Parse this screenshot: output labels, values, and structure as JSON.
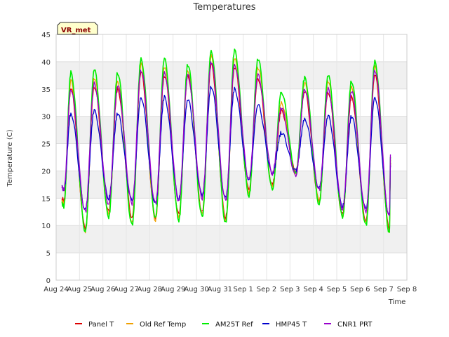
{
  "chart_data": {
    "type": "line",
    "title": "Temperatures",
    "xlabel": "Time",
    "ylabel": "Temperature (C)",
    "badge": "VR_met",
    "ylim": [
      0,
      45
    ],
    "yticks": [
      0,
      5,
      10,
      15,
      20,
      25,
      30,
      35,
      40,
      45
    ],
    "xlim": [
      0,
      15
    ],
    "xtick_labels": [
      "Aug 24",
      "Aug 25",
      "Aug 26",
      "Aug 27",
      "Aug 28",
      "Aug 29",
      "Aug 30",
      "Aug 31",
      "Sep 1",
      "Sep 2",
      "Sep 3",
      "Sep 4",
      "Sep 5",
      "Sep 6",
      "Sep 7",
      "Sep 8"
    ],
    "x_units": "days since Aug 24 00:00",
    "data_start": 0.25,
    "data_end": 14.3,
    "daily_minmax_note": "Each series follows a daily cycle: minimum near 06:00, maximum near 15:00",
    "series": [
      {
        "name": "Panel T",
        "color": "#dd0000",
        "daily_max": [
          35.0,
          35.5,
          35.0,
          38.0,
          37.5,
          37.5,
          39.5,
          39.0,
          37.0,
          31.0,
          34.5,
          34.5,
          33.5,
          37.5
        ],
        "daily_min": [
          14.5,
          9.5,
          12.5,
          11.5,
          11.5,
          12.0,
          12.5,
          11.5,
          16.5,
          17.5,
          20.0,
          14.5,
          12.0,
          11.0,
          9.5
        ]
      },
      {
        "name": "Old Ref Temp",
        "color": "#f0a000",
        "daily_max": [
          36.5,
          37.0,
          36.5,
          39.5,
          39.0,
          38.5,
          41.0,
          40.5,
          39.0,
          32.5,
          36.0,
          36.5,
          35.5,
          39.0
        ],
        "daily_min": [
          14.0,
          9.0,
          12.0,
          10.5,
          11.0,
          11.5,
          12.0,
          11.0,
          16.0,
          17.0,
          19.5,
          14.5,
          11.5,
          10.5,
          9.0
        ]
      },
      {
        "name": "AM25T Ref",
        "color": "#00ee00",
        "daily_max": [
          38.0,
          38.5,
          38.0,
          40.5,
          40.5,
          39.5,
          42.0,
          42.0,
          40.5,
          34.5,
          37.0,
          37.5,
          36.5,
          40.0
        ],
        "daily_min": [
          13.5,
          9.0,
          11.5,
          10.0,
          11.5,
          11.0,
          11.5,
          10.5,
          15.5,
          16.5,
          19.5,
          14.0,
          11.5,
          10.0,
          8.8
        ]
      },
      {
        "name": "HMP45 T",
        "color": "#0000cc",
        "daily_max": [
          30.5,
          31.0,
          30.5,
          33.5,
          33.5,
          33.0,
          35.5,
          35.0,
          32.0,
          27.0,
          29.5,
          30.0,
          30.0,
          33.5
        ],
        "daily_min": [
          16.5,
          13.0,
          15.0,
          14.5,
          14.0,
          15.0,
          15.5,
          15.0,
          18.5,
          19.5,
          20.0,
          17.0,
          13.5,
          13.0,
          12.0
        ]
      },
      {
        "name": "CNR1 PRT",
        "color": "#9900cc",
        "daily_max": [
          35.0,
          36.0,
          35.5,
          38.5,
          38.0,
          37.5,
          40.0,
          39.5,
          37.5,
          31.5,
          35.0,
          35.0,
          34.5,
          38.5
        ],
        "daily_min": [
          16.5,
          12.5,
          14.0,
          14.0,
          14.0,
          14.5,
          15.0,
          14.5,
          18.5,
          19.5,
          19.0,
          16.5,
          13.0,
          12.5,
          11.5
        ]
      }
    ],
    "legend_position": "bottom"
  }
}
